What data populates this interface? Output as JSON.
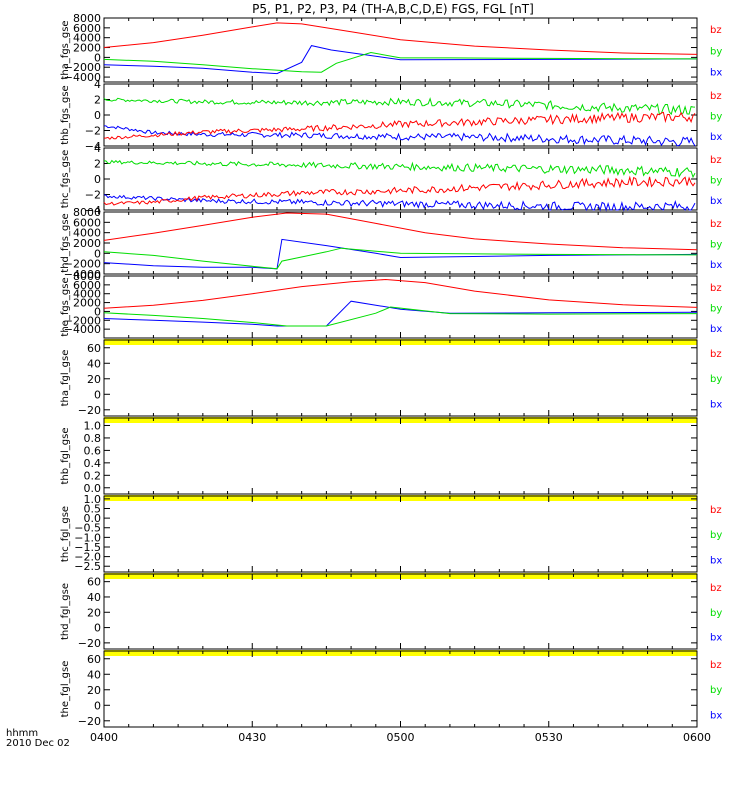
{
  "title": "P5, P1, P2, P3, P4 (TH-A,B,C,D,E) FGS, FGL [nT]",
  "time_axis": {
    "ticks": [
      "0400",
      "0430",
      "0500",
      "0530",
      "0600"
    ],
    "range_minutes": [
      0,
      120
    ],
    "label_line1": "hhmm",
    "label_line2": "2010 Dec 02"
  },
  "colors": {
    "bz": "#ff0000",
    "by": "#00dd00",
    "bx": "#0000ff",
    "fill": "#ffff00",
    "axis": "#000000"
  },
  "chart_data": [
    {
      "type": "line",
      "name": "tha_fgs_gse",
      "ylabel": "tha_fgs_gse",
      "ylim": [
        -5000,
        8000
      ],
      "yticks": [
        "8000",
        "6000",
        "4000",
        "2000",
        "0",
        "−2000",
        "−4000"
      ],
      "ytick_values": [
        8000,
        6000,
        4000,
        2000,
        0,
        -2000,
        -4000
      ],
      "legend": [
        "bz",
        "by",
        "bx"
      ],
      "series": [
        {
          "name": "bz",
          "x": [
            0,
            10,
            20,
            30,
            35,
            40,
            50,
            60,
            75,
            90,
            105,
            120
          ],
          "y": [
            2000,
            3000,
            4500,
            6200,
            7000,
            6800,
            5200,
            3600,
            2300,
            1500,
            900,
            600
          ]
        },
        {
          "name": "by",
          "x": [
            0,
            10,
            20,
            30,
            40,
            44,
            47,
            54,
            60,
            70,
            90,
            120
          ],
          "y": [
            -400,
            -800,
            -1500,
            -2300,
            -2900,
            -3000,
            -1200,
            1000,
            -100,
            -100,
            -200,
            -300
          ]
        },
        {
          "name": "bx",
          "x": [
            0,
            10,
            20,
            30,
            35,
            40,
            42,
            46,
            60,
            90,
            120
          ],
          "y": [
            -1500,
            -1800,
            -2200,
            -3000,
            -3300,
            -1000,
            2400,
            1500,
            -500,
            -400,
            -300
          ]
        }
      ]
    },
    {
      "type": "line",
      "name": "thb_fgs_gse",
      "ylabel": "thb_fgs_gse",
      "ylim": [
        -4,
        4
      ],
      "yticks": [
        "4",
        "2",
        "0",
        "−2",
        "−4"
      ],
      "ytick_values": [
        4,
        2,
        0,
        -2,
        -4
      ],
      "legend": [
        "bz",
        "by",
        "bx"
      ],
      "series": [
        {
          "name": "bz",
          "x": [
            0,
            5,
            10,
            20,
            40,
            60,
            80,
            100,
            120
          ],
          "y": [
            -3.0,
            -2.8,
            -2.6,
            -2.2,
            -1.8,
            -1.2,
            -0.8,
            -0.4,
            -0.2
          ]
        },
        {
          "name": "by",
          "x": [
            0,
            20,
            40,
            60,
            80,
            100,
            120
          ],
          "y": [
            2.0,
            1.7,
            1.6,
            1.7,
            1.5,
            1.0,
            0.6
          ]
        },
        {
          "name": "bx",
          "x": [
            0,
            5,
            10,
            20,
            40,
            60,
            80,
            100,
            120
          ],
          "y": [
            -1.4,
            -1.8,
            -2.3,
            -2.5,
            -2.6,
            -2.8,
            -2.9,
            -3.2,
            -3.5
          ]
        }
      ]
    },
    {
      "type": "line",
      "name": "thc_fgs_gse",
      "ylabel": "thc_fgs_gse",
      "ylim": [
        -4,
        4
      ],
      "yticks": [
        "4",
        "2",
        "0",
        "−2",
        "−4"
      ],
      "ytick_values": [
        4,
        2,
        0,
        -2,
        -4
      ],
      "legend": [
        "bz",
        "by",
        "bx"
      ],
      "series": [
        {
          "name": "bz",
          "x": [
            0,
            10,
            20,
            40,
            60,
            80,
            100,
            120
          ],
          "y": [
            -3.2,
            -3.0,
            -2.4,
            -1.8,
            -1.5,
            -1.0,
            -0.5,
            -0.2
          ]
        },
        {
          "name": "by",
          "x": [
            0,
            20,
            40,
            60,
            80,
            100,
            120
          ],
          "y": [
            2.2,
            2.0,
            1.8,
            1.6,
            1.4,
            1.2,
            0.9
          ]
        },
        {
          "name": "bx",
          "x": [
            0,
            10,
            20,
            40,
            60,
            80,
            100,
            120
          ],
          "y": [
            -2.2,
            -2.5,
            -2.8,
            -3.0,
            -3.2,
            -3.4,
            -3.6,
            -3.5
          ]
        }
      ]
    },
    {
      "type": "line",
      "name": "thd_fgs_gse",
      "ylabel": "thd_fgs_gse",
      "ylim": [
        -4000,
        8000
      ],
      "yticks": [
        "8000",
        "6000",
        "4000",
        "2000",
        "0",
        "−2000",
        "−4000"
      ],
      "ytick_values": [
        8000,
        6000,
        4000,
        2000,
        0,
        -2000,
        -4000
      ],
      "legend": [
        "bz",
        "by",
        "bx"
      ],
      "series": [
        {
          "name": "bz",
          "x": [
            0,
            10,
            20,
            30,
            37,
            45,
            55,
            65,
            75,
            90,
            105,
            120
          ],
          "y": [
            2500,
            3900,
            5400,
            7000,
            7800,
            7600,
            5800,
            4000,
            2800,
            1800,
            1100,
            700
          ]
        },
        {
          "name": "by",
          "x": [
            0,
            10,
            20,
            30,
            35,
            36,
            45,
            48,
            60,
            90,
            120
          ],
          "y": [
            300,
            -400,
            -1500,
            -2500,
            -3000,
            -1500,
            300,
            1000,
            0,
            -200,
            -300
          ]
        },
        {
          "name": "bx",
          "x": [
            0,
            10,
            20,
            30,
            35,
            36,
            45,
            55,
            60,
            90,
            120
          ],
          "y": [
            -1800,
            -2400,
            -2700,
            -2700,
            -3000,
            2700,
            1500,
            0,
            -800,
            -400,
            -200
          ]
        }
      ]
    },
    {
      "type": "line",
      "name": "the_fgs_gse",
      "ylabel": "the_fgs_gse",
      "ylim": [
        -6000,
        8000
      ],
      "yticks": [
        "8000",
        "6000",
        "4000",
        "2000",
        "0",
        "−2000",
        "−4000"
      ],
      "ytick_values": [
        8000,
        6000,
        4000,
        2000,
        0,
        -2000,
        -4000
      ],
      "legend": [
        "bz",
        "by",
        "bx"
      ],
      "series": [
        {
          "name": "bz",
          "x": [
            0,
            10,
            20,
            30,
            40,
            50,
            57,
            65,
            75,
            90,
            105,
            120
          ],
          "y": [
            700,
            1400,
            2500,
            4000,
            5600,
            6700,
            7200,
            6500,
            4600,
            2600,
            1500,
            900
          ]
        },
        {
          "name": "by",
          "x": [
            0,
            10,
            20,
            30,
            37,
            45,
            55,
            58,
            70,
            90,
            120
          ],
          "y": [
            -300,
            -900,
            -1600,
            -2500,
            -3300,
            -3300,
            -400,
            1000,
            -500,
            -600,
            -500
          ]
        },
        {
          "name": "bx",
          "x": [
            0,
            10,
            20,
            30,
            35,
            45,
            50,
            60,
            70,
            90,
            120
          ],
          "y": [
            -1600,
            -2000,
            -2400,
            -2900,
            -3300,
            -3300,
            2300,
            500,
            -400,
            -300,
            -200
          ]
        }
      ]
    },
    {
      "type": "line",
      "name": "tha_fgl_gse",
      "ylabel": "tha_fgl_gse",
      "ylim": [
        -28,
        70
      ],
      "yticks": [
        "60",
        "40",
        "20",
        "0",
        "−20"
      ],
      "ytick_values": [
        60,
        40,
        20,
        0,
        -20
      ],
      "legend": [
        "bz",
        "by",
        "bx"
      ],
      "series": []
    },
    {
      "type": "line",
      "name": "thb_fgl_gse",
      "ylabel": "thb_fgl_gse",
      "ylim": [
        -0.1,
        1.12
      ],
      "yticks": [
        "1.0",
        "0.8",
        "0.6",
        "0.4",
        "0.2",
        "0.0"
      ],
      "ytick_values": [
        1.0,
        0.8,
        0.6,
        0.4,
        0.2,
        0.0
      ],
      "legend": [],
      "series": []
    },
    {
      "type": "line",
      "name": "thc_fgl_gse",
      "ylabel": "thc_fgl_gse",
      "ylim": [
        -2.8,
        1.15
      ],
      "yticks": [
        "1.0",
        "0.5",
        "0.0",
        "−0.5",
        "−1.0",
        "−1.5",
        "−2.0",
        "−2.5"
      ],
      "ytick_values": [
        1.0,
        0.5,
        0.0,
        -0.5,
        -1.0,
        -1.5,
        -2.0,
        -2.5
      ],
      "legend": [
        "bz",
        "by",
        "bx"
      ],
      "series": []
    },
    {
      "type": "line",
      "name": "thd_fgl_gse",
      "ylabel": "thd_fgl_gse",
      "ylim": [
        -28,
        70
      ],
      "yticks": [
        "60",
        "40",
        "20",
        "0",
        "−20"
      ],
      "ytick_values": [
        60,
        40,
        20,
        0,
        -20
      ],
      "legend": [
        "bz",
        "by",
        "bx"
      ],
      "series": []
    },
    {
      "type": "line",
      "name": "the_fgl_gse",
      "ylabel": "the_fgl_gse",
      "ylim": [
        -28,
        70
      ],
      "yticks": [
        "60",
        "40",
        "20",
        "0",
        "−20"
      ],
      "ytick_values": [
        60,
        40,
        20,
        0,
        -20
      ],
      "legend": [
        "bz",
        "by",
        "bx"
      ],
      "series": []
    }
  ]
}
